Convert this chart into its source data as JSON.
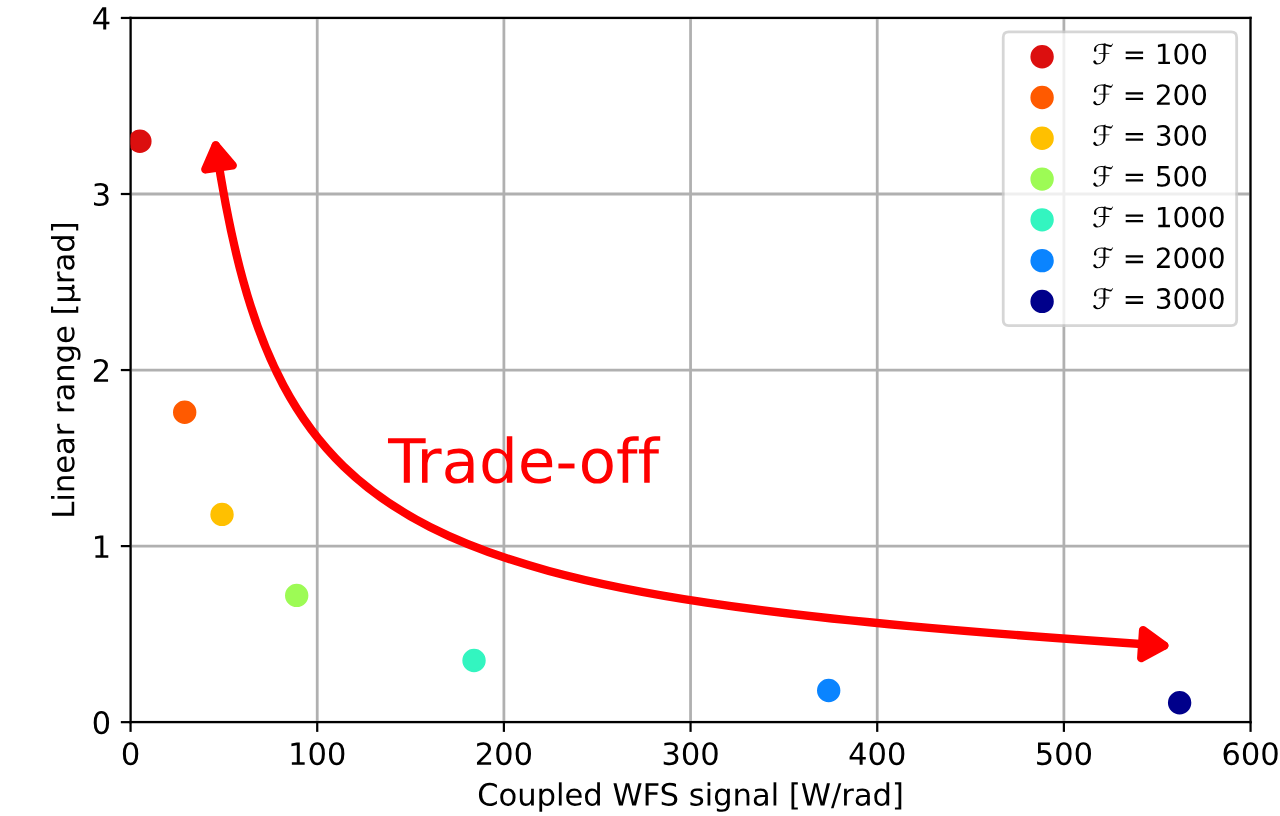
{
  "chart_data": {
    "type": "scatter",
    "xlabel": "Coupled WFS signal [W/rad]",
    "ylabel": "Linear range [μrad]",
    "xlim": [
      0,
      600
    ],
    "xticks": [
      0,
      100,
      200,
      300,
      400,
      500,
      600
    ],
    "ylim": [
      0,
      4
    ],
    "yticks": [
      0,
      1,
      2,
      3,
      4
    ],
    "grid": true,
    "legend": "top right",
    "marker": "circle",
    "annotations": [
      "Trade-off"
    ],
    "series": [
      {
        "name": "ℱ = 100",
        "color": "#dc0f0f",
        "x": [
          5
        ],
        "values": [
          3.3
        ]
      },
      {
        "name": "ℱ = 200",
        "color": "#ff5a00",
        "x": [
          29
        ],
        "values": [
          1.76
        ]
      },
      {
        "name": "ℱ = 300",
        "color": "#ffc000",
        "x": [
          49
        ],
        "values": [
          1.18
        ]
      },
      {
        "name": "ℱ = 500",
        "color": "#9dfb55",
        "x": [
          89
        ],
        "values": [
          0.72
        ]
      },
      {
        "name": "ℱ = 1000",
        "color": "#33f5c0",
        "x": [
          184
        ],
        "values": [
          0.35
        ]
      },
      {
        "name": "ℱ = 2000",
        "color": "#0a84ff",
        "x": [
          374
        ],
        "values": [
          0.18
        ]
      },
      {
        "name": "ℱ = 3000",
        "color": "#00008b",
        "x": [
          562
        ],
        "values": [
          0.11
        ]
      }
    ]
  }
}
